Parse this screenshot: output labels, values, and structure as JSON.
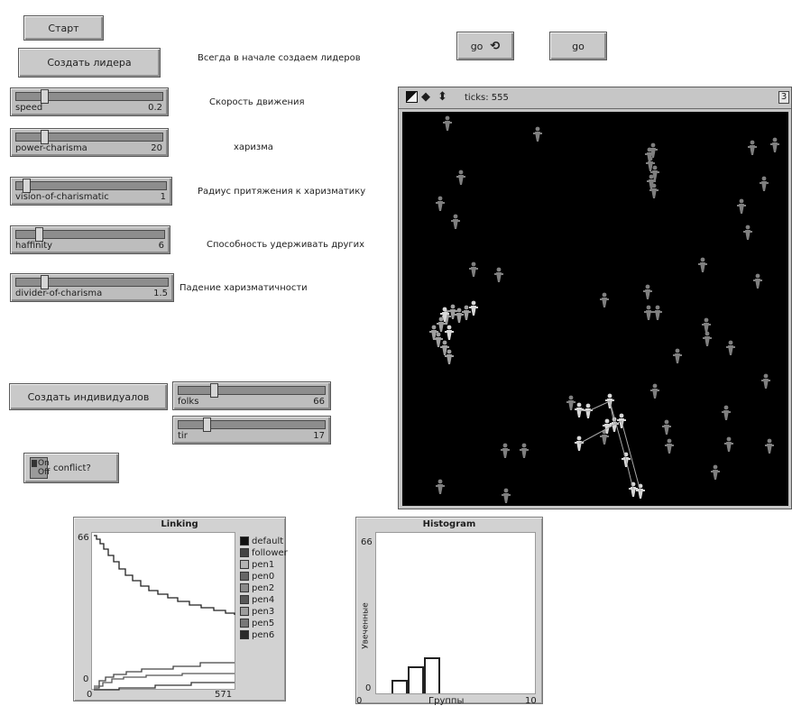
{
  "buttons": {
    "start": "Старт",
    "create_leader": "Создать лидера",
    "go_forever": "go",
    "go_once": "go",
    "create_individuals": "Создать индивидуалов"
  },
  "notes": {
    "create_leader": "Всегда в начале создаем лидеров",
    "speed": "Скорость движения",
    "charisma": "харизма",
    "vision": "Радиус притяжения к харизматику",
    "affinity": "Способность удерживать других",
    "divider": "Падение харизматичности"
  },
  "sliders": [
    {
      "name": "speed",
      "value": "0.2",
      "fraction": 0.2
    },
    {
      "name": "power-charisma",
      "value": "20",
      "fraction": 0.2
    },
    {
      "name": "vision-of-charismatic",
      "value": "1",
      "fraction": 0.05
    },
    {
      "name": "haffinity",
      "value": "6",
      "fraction": 0.12
    },
    {
      "name": "divider-of-charisma",
      "value": "1.5",
      "fraction": 0.15
    },
    {
      "name": "folks",
      "value": "66",
      "fraction": 0.25
    },
    {
      "name": "tir",
      "value": "17",
      "fraction": 0.2
    }
  ],
  "switch": {
    "on": "On",
    "off": "Off",
    "label": "conflict?"
  },
  "world": {
    "ticks_label": "ticks: 555",
    "right_tab": "3"
  },
  "linking_plot": {
    "title": "Linking",
    "y_max": "66",
    "y_min": "0",
    "x_min": "0",
    "x_max": "571",
    "legend": [
      {
        "name": "default",
        "color": "#111111"
      },
      {
        "name": "follower",
        "color": "#444444"
      },
      {
        "name": "pen1",
        "color": "#b4b4b4"
      },
      {
        "name": "pen0",
        "color": "#666666"
      },
      {
        "name": "pen2",
        "color": "#8a8a8a"
      },
      {
        "name": "pen4",
        "color": "#585858"
      },
      {
        "name": "pen3",
        "color": "#9c9c9c"
      },
      {
        "name": "pen5",
        "color": "#777777"
      },
      {
        "name": "pen6",
        "color": "#2a2a2a"
      }
    ]
  },
  "histogram_plot": {
    "title": "Histogram",
    "y_max": "66",
    "y_min": "0",
    "x_min": "0",
    "x_max": "10",
    "ylabel": "Увеченные",
    "xlabel": "Группы"
  },
  "colors": {
    "world_bg": "#000000",
    "panel": "#c9c9c9"
  }
}
